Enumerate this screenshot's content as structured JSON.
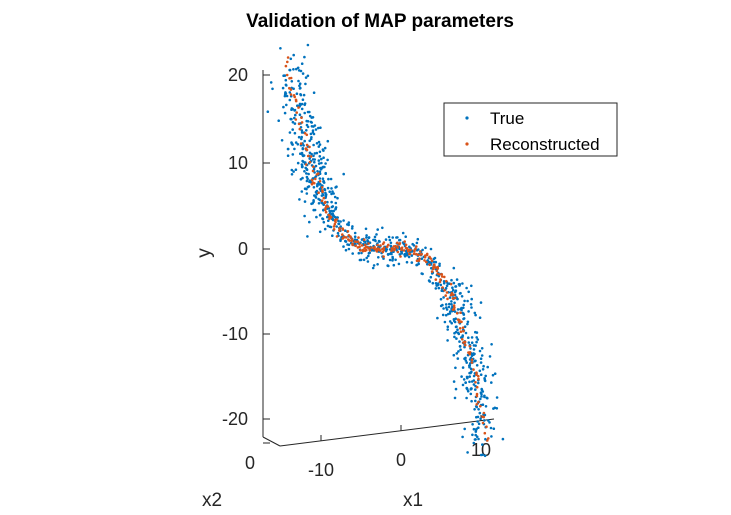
{
  "chart_data": {
    "type": "scatter",
    "title": "Validation of MAP parameters",
    "xlabel": "x1",
    "ylabel": "y",
    "zlabel": "x2",
    "ylim": [
      -22,
      22
    ],
    "y_ticks": [
      "20",
      "10",
      "0",
      "-10",
      "-20"
    ],
    "x1_ticks": [
      "-10",
      "0",
      "10"
    ],
    "x2_ticks": [
      "0"
    ],
    "legend_position": "top-right",
    "colors": {
      "True": "#0072BD",
      "Reconstructed": "#D95319"
    },
    "series": [
      {
        "name": "True",
        "description": "noisy samples around y = -(x1/5)^3 * 2.5 plus x2-dependent spread",
        "points_x1y": [
          [
            -12.5,
            19
          ],
          [
            -12,
            16
          ],
          [
            -11.8,
            14
          ],
          [
            -11.5,
            12
          ],
          [
            -11,
            10
          ],
          [
            -10.5,
            8
          ],
          [
            -10,
            6
          ],
          [
            -9.5,
            4.5
          ],
          [
            -9,
            3
          ],
          [
            -8,
            1.5
          ],
          [
            -7,
            0.8
          ],
          [
            -5,
            0.3
          ],
          [
            -3,
            0.1
          ],
          [
            -1,
            0
          ],
          [
            0,
            0
          ],
          [
            1,
            0
          ],
          [
            3,
            -0.1
          ],
          [
            5,
            -0.3
          ],
          [
            7,
            -0.8
          ],
          [
            8,
            -1.5
          ],
          [
            9,
            -3
          ],
          [
            9.5,
            -4.5
          ],
          [
            10,
            -6
          ],
          [
            10.5,
            -8
          ],
          [
            11,
            -10
          ],
          [
            11.5,
            -12
          ],
          [
            11.8,
            -14
          ],
          [
            12,
            -16
          ],
          [
            12.5,
            -19
          ]
        ]
      },
      {
        "name": "Reconstructed",
        "description": "dense curve through the center of the True cloud",
        "points_x1y": [
          [
            -13,
            21
          ],
          [
            -12.5,
            18
          ],
          [
            -12,
            15
          ],
          [
            -11.5,
            12.5
          ],
          [
            -11,
            10
          ],
          [
            -10.5,
            8
          ],
          [
            -10,
            6
          ],
          [
            -9,
            3.5
          ],
          [
            -8,
            1.8
          ],
          [
            -7,
            0.8
          ],
          [
            -5,
            0.3
          ],
          [
            0,
            0
          ],
          [
            5,
            -0.3
          ],
          [
            7,
            -0.8
          ],
          [
            8,
            -1.8
          ],
          [
            9,
            -3.5
          ],
          [
            10,
            -6
          ],
          [
            10.5,
            -8
          ],
          [
            11,
            -10
          ],
          [
            11.5,
            -12.5
          ],
          [
            12,
            -15
          ],
          [
            12.5,
            -18
          ],
          [
            13,
            -21
          ]
        ]
      }
    ]
  }
}
